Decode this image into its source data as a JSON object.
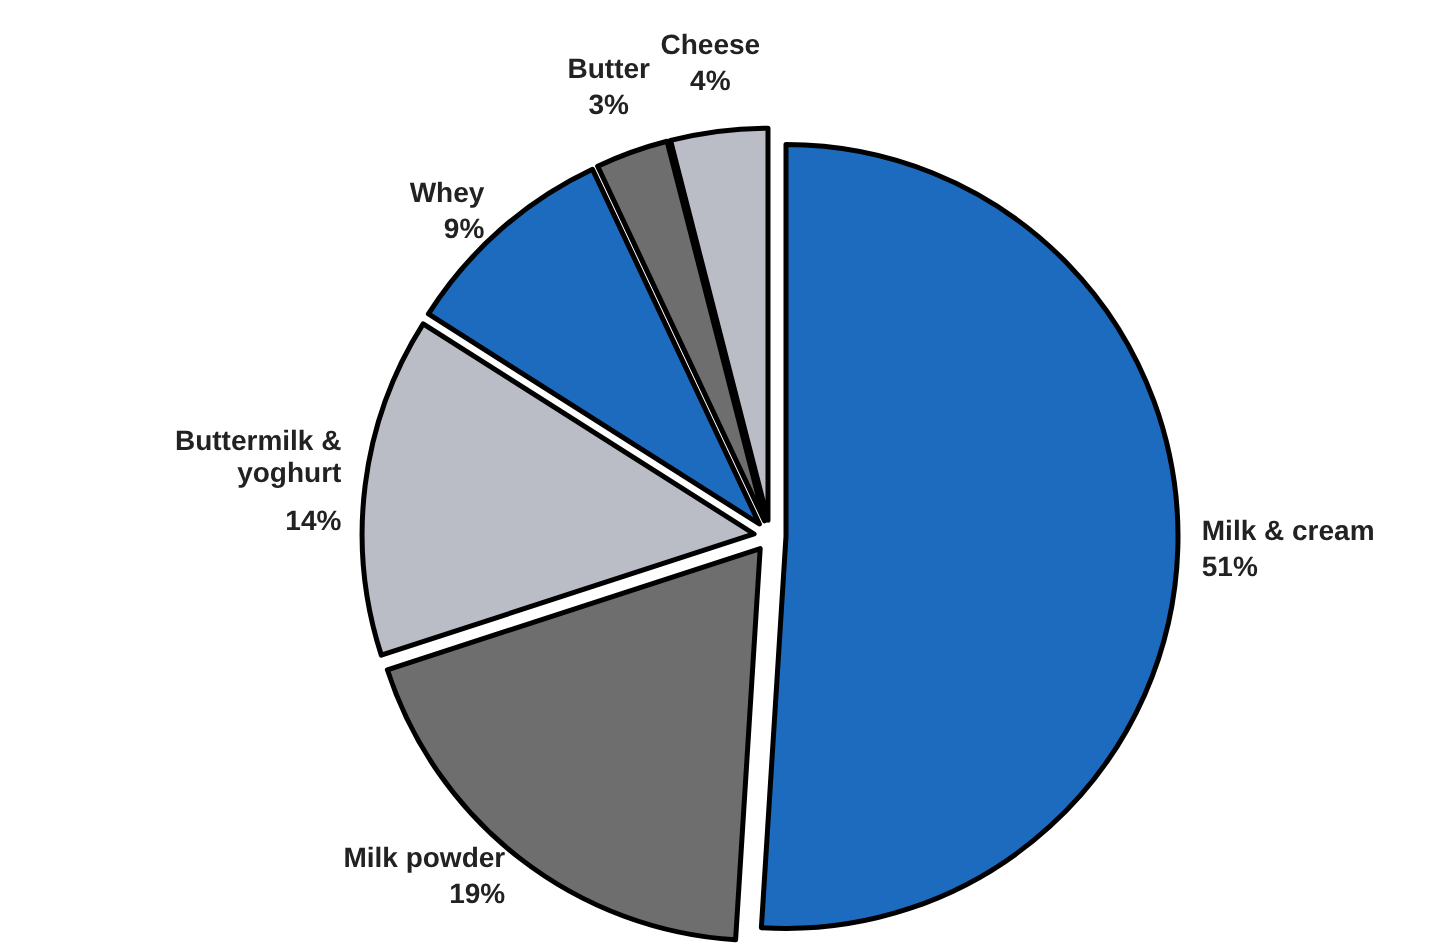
{
  "chart_data": {
    "type": "pie",
    "categories": [
      "Milk & cream",
      "Milk powder",
      "Buttermilk & yoghurt",
      "Whey",
      "Butter",
      "Cheese"
    ],
    "values": [
      51,
      19,
      14,
      9,
      3,
      4
    ],
    "colors": [
      "#1c6bbf",
      "#6e6e6e",
      "#babdc5",
      "#1c6bbf",
      "#6e6e6e",
      "#babdc5"
    ],
    "value_labels": [
      "51%",
      "19%",
      "14%",
      "9%",
      "3%",
      "4%"
    ]
  }
}
